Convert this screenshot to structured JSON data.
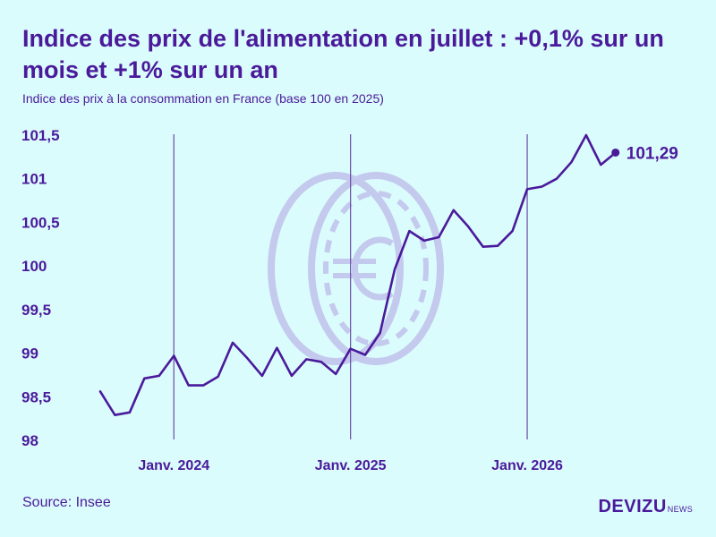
{
  "header": {
    "title": "Indice des prix de l'alimentation en juillet : +0,1% sur un mois et +1% sur un an",
    "subtitle": "Indice des prix à la consommation en France (base 100 en 2025)"
  },
  "footer": {
    "source": "Source: Insee",
    "logo_main": "DEVIZU",
    "logo_sub": "NEWS"
  },
  "colors": {
    "background": "#dbfcfc",
    "line": "#4a1a9b",
    "text": "#4a1a9b",
    "divider": "#6a4aa8",
    "watermark": "#c4c9ee"
  },
  "watermark_icon": "euro-coin-icon",
  "chart_data": {
    "type": "line",
    "title": "Indice des prix de l'alimentation en juillet : +0,1% sur un mois et +1% sur un an",
    "subtitle": "Indice des prix à la consommation en France (base 100 en 2025)",
    "x_labels": [
      "Janv. 2024",
      "Janv. 2025",
      "Janv. 2026"
    ],
    "ylim": [
      98,
      101.5
    ],
    "yticks": [
      "98",
      "98,5",
      "99",
      "99,5",
      "100",
      "100,5",
      "101",
      "101,5"
    ],
    "ytick_values": [
      98,
      98.5,
      99,
      99.5,
      100,
      100.5,
      101,
      101.5
    ],
    "grid": false,
    "series": [
      {
        "values": [
          98.55,
          98.28,
          98.31,
          98.7,
          98.73,
          98.96,
          98.62,
          98.62,
          98.72,
          99.11,
          98.93,
          98.73,
          99.05,
          98.73,
          98.92,
          98.89,
          98.75,
          99.04,
          98.97,
          99.22,
          99.95,
          100.39,
          100.28,
          100.32,
          100.63,
          100.44,
          100.21,
          100.22,
          100.39,
          100.87,
          100.9,
          100.99,
          101.18,
          101.49,
          101.15,
          101.29
        ]
      }
    ],
    "end_label": "101,29"
  }
}
